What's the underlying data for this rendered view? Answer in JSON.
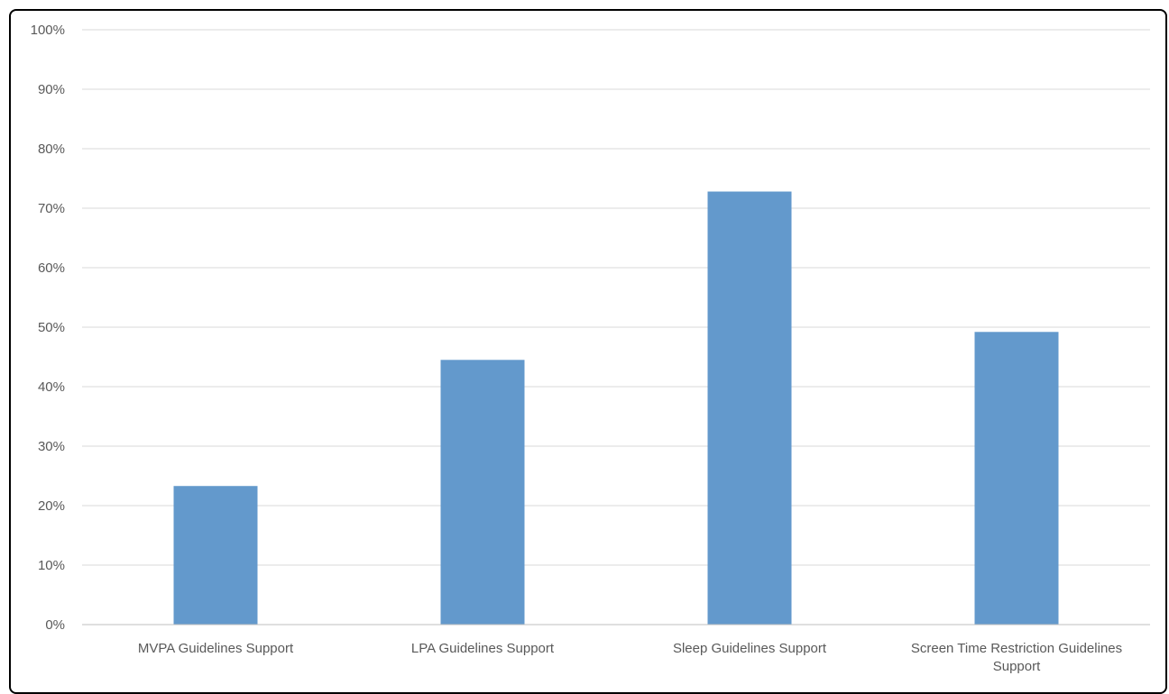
{
  "chart_data": {
    "type": "bar",
    "title": "",
    "xlabel": "",
    "ylabel": "",
    "categories": [
      "MVPA Guidelines Support",
      "LPA Guidelines Support",
      "Sleep Guidelines Support",
      "Screen Time Restriction Guidelines Support"
    ],
    "values": [
      23.3,
      44.5,
      72.8,
      49.2
    ],
    "ylim": [
      0,
      100
    ],
    "yticks": [
      0,
      10,
      20,
      30,
      40,
      50,
      60,
      70,
      80,
      90,
      100
    ],
    "ytick_labels": [
      "0%",
      "10%",
      "20%",
      "30%",
      "40%",
      "50%",
      "60%",
      "70%",
      "80%",
      "90%",
      "100%"
    ],
    "grid": true,
    "legend": "none",
    "bar_color": "#6399cc",
    "grid_color": "#d9d9d9",
    "axis_color": "#bfbfbf"
  }
}
